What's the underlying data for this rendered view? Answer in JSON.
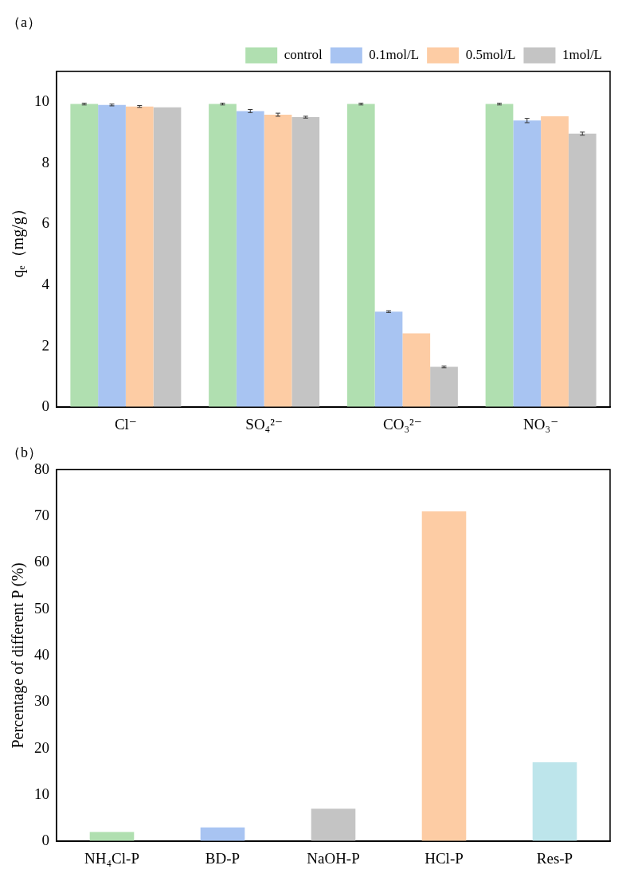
{
  "chart_data": [
    {
      "type": "bar",
      "title": "（a）",
      "ylabel": "qₑ（mg/g）",
      "categories": [
        "Cl⁻",
        "SO₄²⁻",
        "CO₃²⁻",
        "NO₃⁻"
      ],
      "series": [
        {
          "name": "control",
          "color": "#b0dfb0",
          "values": [
            9.93,
            9.93,
            9.93,
            9.93
          ],
          "errors": [
            0.03,
            0.03,
            0.03,
            0.03
          ]
        },
        {
          "name": "0.1mol/L",
          "color": "#a8c4f2",
          "values": [
            9.9,
            9.7,
            3.13,
            9.39
          ],
          "errors": [
            0.03,
            0.05,
            0.03,
            0.07
          ]
        },
        {
          "name": "0.5mol/L",
          "color": "#fdcca4",
          "values": [
            9.85,
            9.58,
            2.42,
            9.53
          ],
          "errors": [
            0.03,
            0.05,
            null,
            null
          ]
        },
        {
          "name": "1mol/L",
          "color": "#c4c4c4",
          "values": [
            9.82,
            9.5,
            1.32,
            8.96
          ],
          "errors": [
            null,
            0.03,
            0.03,
            0.05
          ]
        }
      ],
      "ylim": [
        0,
        11
      ],
      "yticks": [
        0,
        2,
        4,
        6,
        8,
        10
      ],
      "grid": false,
      "legend": "top right"
    },
    {
      "type": "bar",
      "title": "（b）",
      "ylabel": "Percentage of different P (%)",
      "categories": [
        "NH₄Cl-P",
        "BD-P",
        "NaOH-P",
        "HCl-P",
        "Res-P"
      ],
      "values": [
        2,
        3,
        7,
        71,
        17
      ],
      "colors": [
        "#b0dfb0",
        "#a8c4f2",
        "#c4c4c4",
        "#fdcca4",
        "#bde5eb"
      ],
      "ylim": [
        0,
        80
      ],
      "yticks": [
        0,
        10,
        20,
        30,
        40,
        50,
        60,
        70,
        80
      ],
      "grid": false
    }
  ]
}
